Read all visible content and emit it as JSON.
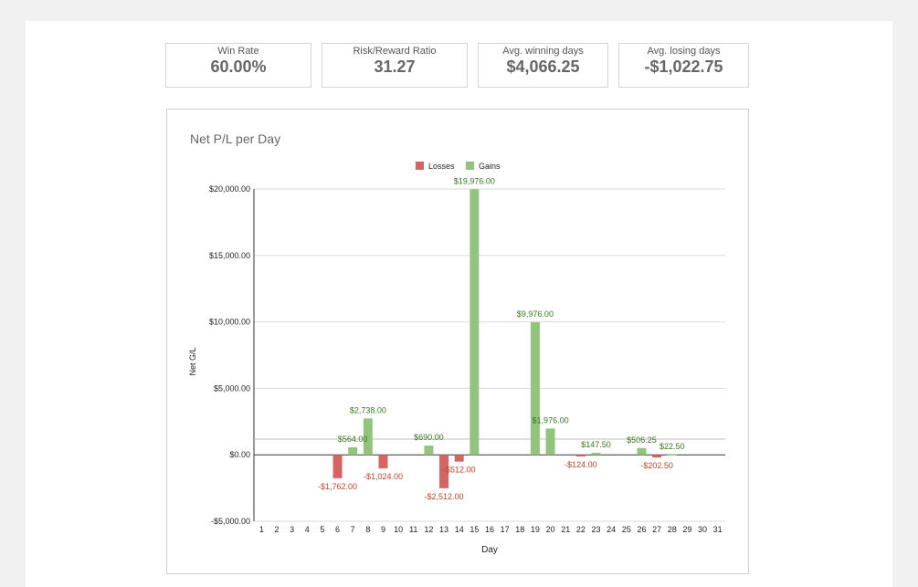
{
  "stats": [
    {
      "label": "Win Rate",
      "value": "60.00%"
    },
    {
      "label": "Risk/Reward Ratio",
      "value": "31.27"
    },
    {
      "label": "Avg. winning days",
      "value": "$4,066.25"
    },
    {
      "label": "Avg. losing days",
      "value": "-$1,022.75"
    }
  ],
  "colors": {
    "loss": "#d56464",
    "gain": "#93c47d",
    "loss_label": "#cc4125",
    "gain_label": "#38761d"
  },
  "chart_data": {
    "type": "bar",
    "title": "Net P/L per Day",
    "xlabel": "Day",
    "ylabel": "Net G/L",
    "ylim": [
      -5000,
      20000
    ],
    "yticks": [
      {
        "value": 20000,
        "label": "$20,000.00"
      },
      {
        "value": 15000,
        "label": "$15,000.00"
      },
      {
        "value": 10000,
        "label": "$10,000.00"
      },
      {
        "value": 5000,
        "label": "$5,000.00"
      },
      {
        "value": 0,
        "label": "$0.00"
      },
      {
        "value": -5000,
        "label": "-$5,000.00"
      }
    ],
    "categories": [
      "1",
      "2",
      "3",
      "4",
      "5",
      "6",
      "7",
      "8",
      "9",
      "10",
      "11",
      "12",
      "13",
      "14",
      "15",
      "16",
      "17",
      "18",
      "19",
      "20",
      "21",
      "22",
      "23",
      "24",
      "25",
      "26",
      "27",
      "28",
      "29",
      "30",
      "31"
    ],
    "legend": [
      "Losses",
      "Gains"
    ],
    "reference_line": 1180,
    "series": [
      {
        "name": "Losses",
        "points": [
          {
            "day": 6,
            "value": -1762,
            "label": "-$1,762.00"
          },
          {
            "day": 9,
            "value": -1024,
            "label": "-$1,024.00"
          },
          {
            "day": 13,
            "value": -2512,
            "label": "-$2,512.00"
          },
          {
            "day": 14,
            "value": -512,
            "label": "-$512.00"
          },
          {
            "day": 22,
            "value": -124,
            "label": "-$124.00"
          },
          {
            "day": 27,
            "value": -202.5,
            "label": "-$202.50"
          }
        ]
      },
      {
        "name": "Gains",
        "points": [
          {
            "day": 7,
            "value": 564,
            "label": "$564.00"
          },
          {
            "day": 8,
            "value": 2738,
            "label": "$2,738.00"
          },
          {
            "day": 12,
            "value": 690,
            "label": "$690.00"
          },
          {
            "day": 15,
            "value": 19976,
            "label": "$19,976.00"
          },
          {
            "day": 19,
            "value": 9976,
            "label": "$9,976.00"
          },
          {
            "day": 20,
            "value": 1976,
            "label": "$1,976.00"
          },
          {
            "day": 23,
            "value": 147.5,
            "label": "$147.50"
          },
          {
            "day": 26,
            "value": 506.25,
            "label": "$506.25"
          },
          {
            "day": 28,
            "value": 22.5,
            "label": "$22.50"
          }
        ]
      }
    ]
  }
}
